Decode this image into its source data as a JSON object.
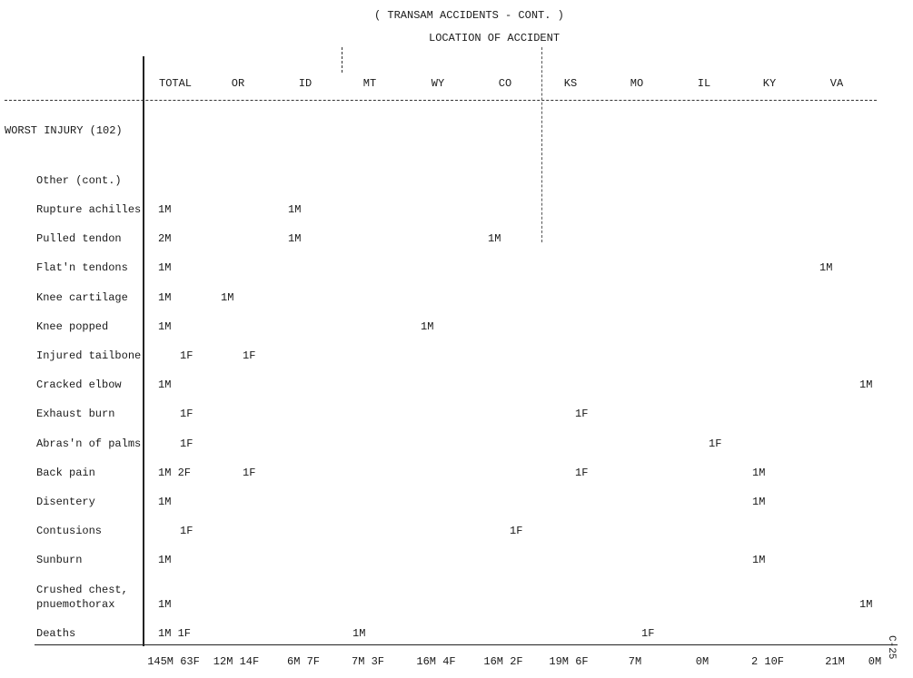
{
  "header": {
    "title": "( TRANSAM ACCIDENTS - CONT. )",
    "subtitle": "LOCATION OF ACCIDENT"
  },
  "columns": [
    "TOTAL",
    "OR",
    "ID",
    "MT",
    "WY",
    "CO",
    "KS",
    "MO",
    "IL",
    "KY",
    "VA",
    null
  ],
  "section": "WORST INJURY (102)",
  "subsection": "Other (cont.)",
  "rows": [
    {
      "label": [
        "Rupture achilles"
      ],
      "cells": [
        "1M",
        null,
        "1M",
        null,
        null,
        null,
        null,
        null,
        null,
        null,
        null,
        null
      ]
    },
    {
      "label": [
        "Pulled tendon"
      ],
      "cells": [
        "2M",
        null,
        "1M",
        null,
        null,
        "1M",
        null,
        null,
        null,
        null,
        null,
        null
      ]
    },
    {
      "label": [
        "Flat'n tendons"
      ],
      "cells": [
        "1M",
        null,
        null,
        null,
        null,
        null,
        null,
        null,
        null,
        null,
        "1M",
        null
      ]
    },
    {
      "label": [
        "Knee cartilage"
      ],
      "cells": [
        "1M",
        "1M",
        null,
        null,
        null,
        null,
        null,
        null,
        null,
        null,
        null,
        null
      ]
    },
    {
      "label": [
        "Knee popped"
      ],
      "cells": [
        "1M",
        null,
        null,
        null,
        "1M",
        null,
        null,
        null,
        null,
        null,
        null,
        null
      ]
    },
    {
      "label": [
        "Injured tailbone"
      ],
      "cells": [
        "1F",
        "1F",
        null,
        null,
        null,
        null,
        null,
        null,
        null,
        null,
        null,
        null
      ]
    },
    {
      "label": [
        "Cracked elbow"
      ],
      "cells": [
        "1M",
        null,
        null,
        null,
        null,
        null,
        null,
        null,
        null,
        null,
        null,
        "1M"
      ]
    },
    {
      "label": [
        "Exhaust burn"
      ],
      "cells": [
        "1F",
        null,
        null,
        null,
        null,
        null,
        "1F",
        null,
        null,
        null,
        null,
        null
      ]
    },
    {
      "label": [
        "Abras'n of palms"
      ],
      "cells": [
        "1F",
        null,
        null,
        null,
        null,
        null,
        null,
        null,
        "1F",
        null,
        null,
        null
      ]
    },
    {
      "label": [
        "Back pain"
      ],
      "cells": [
        "1M 2F",
        "1F",
        null,
        null,
        null,
        null,
        "1F",
        null,
        null,
        "1M",
        null,
        null
      ]
    },
    {
      "label": [
        "Disentery"
      ],
      "cells": [
        "1M",
        null,
        null,
        null,
        null,
        null,
        null,
        null,
        null,
        "1M",
        null,
        null
      ]
    },
    {
      "label": [
        "Contusions"
      ],
      "cells": [
        "1F",
        null,
        null,
        null,
        null,
        "1F",
        null,
        null,
        null,
        null,
        null,
        null
      ]
    },
    {
      "label": [
        "Sunburn"
      ],
      "cells": [
        "1M",
        null,
        null,
        null,
        null,
        null,
        null,
        null,
        null,
        "1M",
        null,
        null
      ]
    },
    {
      "label": [
        "Crushed chest,",
        "pnuemothorax"
      ],
      "cells": [
        "1M",
        null,
        null,
        null,
        null,
        null,
        null,
        null,
        null,
        null,
        null,
        "1M"
      ]
    },
    {
      "label": [
        "Deaths"
      ],
      "cells": [
        "1M 1F",
        null,
        null,
        "1M",
        null,
        null,
        null,
        "1F",
        null,
        null,
        null,
        null
      ]
    }
  ],
  "totals": [
    "145M 63F",
    "12M 14F",
    "6M 7F",
    "7M 3F",
    "16M 4F",
    "16M 2F",
    "19M 6F",
    "7M",
    "0M",
    "2 10F",
    "21M",
    "0M"
  ],
  "page_number": "C-25"
}
